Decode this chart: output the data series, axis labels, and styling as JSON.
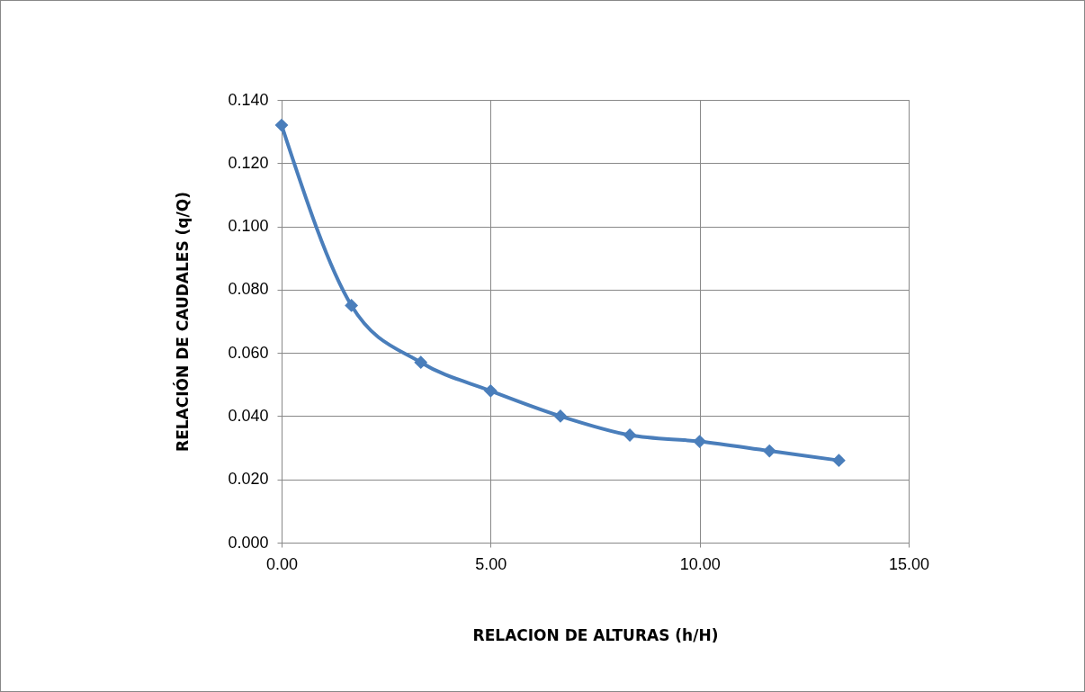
{
  "chart_data": {
    "type": "line",
    "xlabel": "RELACION DE ALTURAS (h/H)",
    "ylabel": "RELACIÓN DE CAUDALES (q/Q)",
    "x": [
      0,
      1.67,
      3.33,
      5.0,
      6.67,
      8.33,
      10.0,
      11.67,
      13.33
    ],
    "series": [
      {
        "color": "#4a7ebb",
        "values": [
          0.132,
          0.075,
          0.057,
          0.048,
          0.04,
          0.034,
          0.032,
          0.029,
          0.026
        ]
      }
    ],
    "xlim": [
      0,
      15
    ],
    "xticks": [
      {
        "value": 0,
        "label": "0.00"
      },
      {
        "value": 5,
        "label": "5.00"
      },
      {
        "value": 10,
        "label": "10.00"
      },
      {
        "value": 15,
        "label": "15.00"
      }
    ],
    "ylim": [
      0,
      0.14
    ],
    "yticks": [
      {
        "value": 0,
        "label": "0.000"
      },
      {
        "value": 0.02,
        "label": "0.020"
      },
      {
        "value": 0.04,
        "label": "0.040"
      },
      {
        "value": 0.06,
        "label": "0.060"
      },
      {
        "value": 0.08,
        "label": "0.080"
      },
      {
        "value": 0.1,
        "label": "0.100"
      },
      {
        "value": 0.12,
        "label": "0.120"
      },
      {
        "value": 0.14,
        "label": "0.140"
      }
    ],
    "grid": true,
    "marker": "diamond",
    "line_style": "solid"
  }
}
